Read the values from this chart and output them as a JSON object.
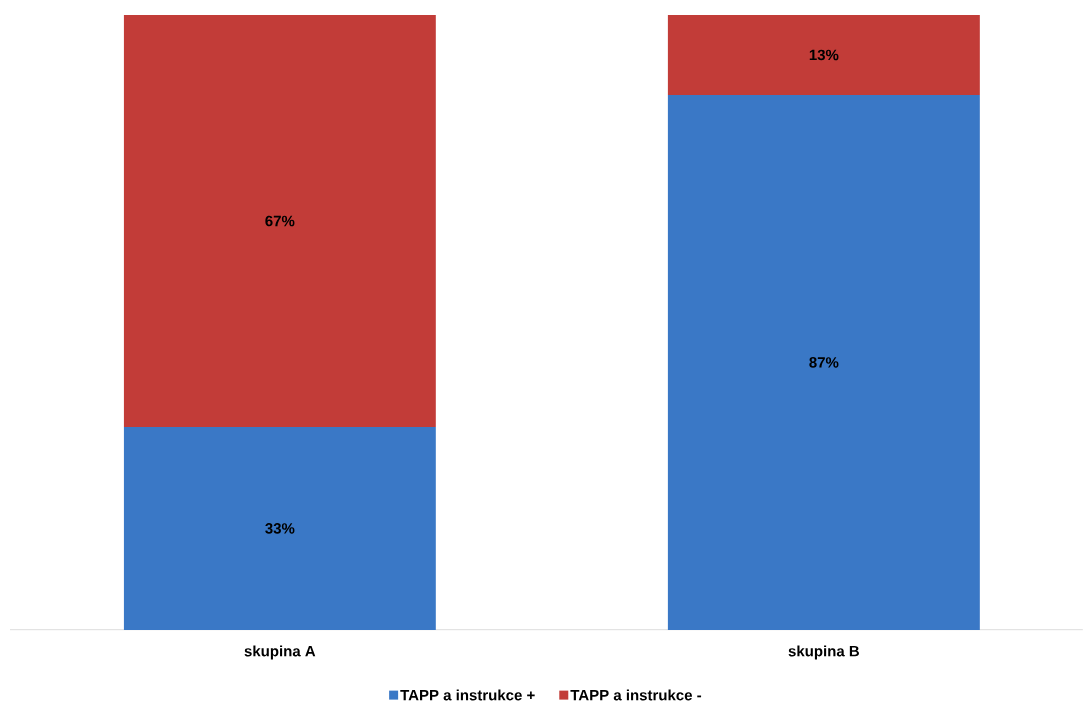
{
  "chart_data": {
    "type": "bar",
    "stacked": true,
    "categories": [
      "skupina A",
      "skupina B"
    ],
    "series": [
      {
        "name": "TAPP a instrukce +",
        "color": "#3a78c6",
        "values": [
          33,
          87
        ],
        "value_labels": [
          "33%",
          "87%"
        ]
      },
      {
        "name": "TAPP a instrukce -",
        "color": "#c23c38",
        "values": [
          67,
          13
        ],
        "value_labels": [
          "67%",
          "13%"
        ]
      }
    ],
    "ylim": [
      0,
      100
    ],
    "tick_labels": "x",
    "legend": "bottom"
  }
}
